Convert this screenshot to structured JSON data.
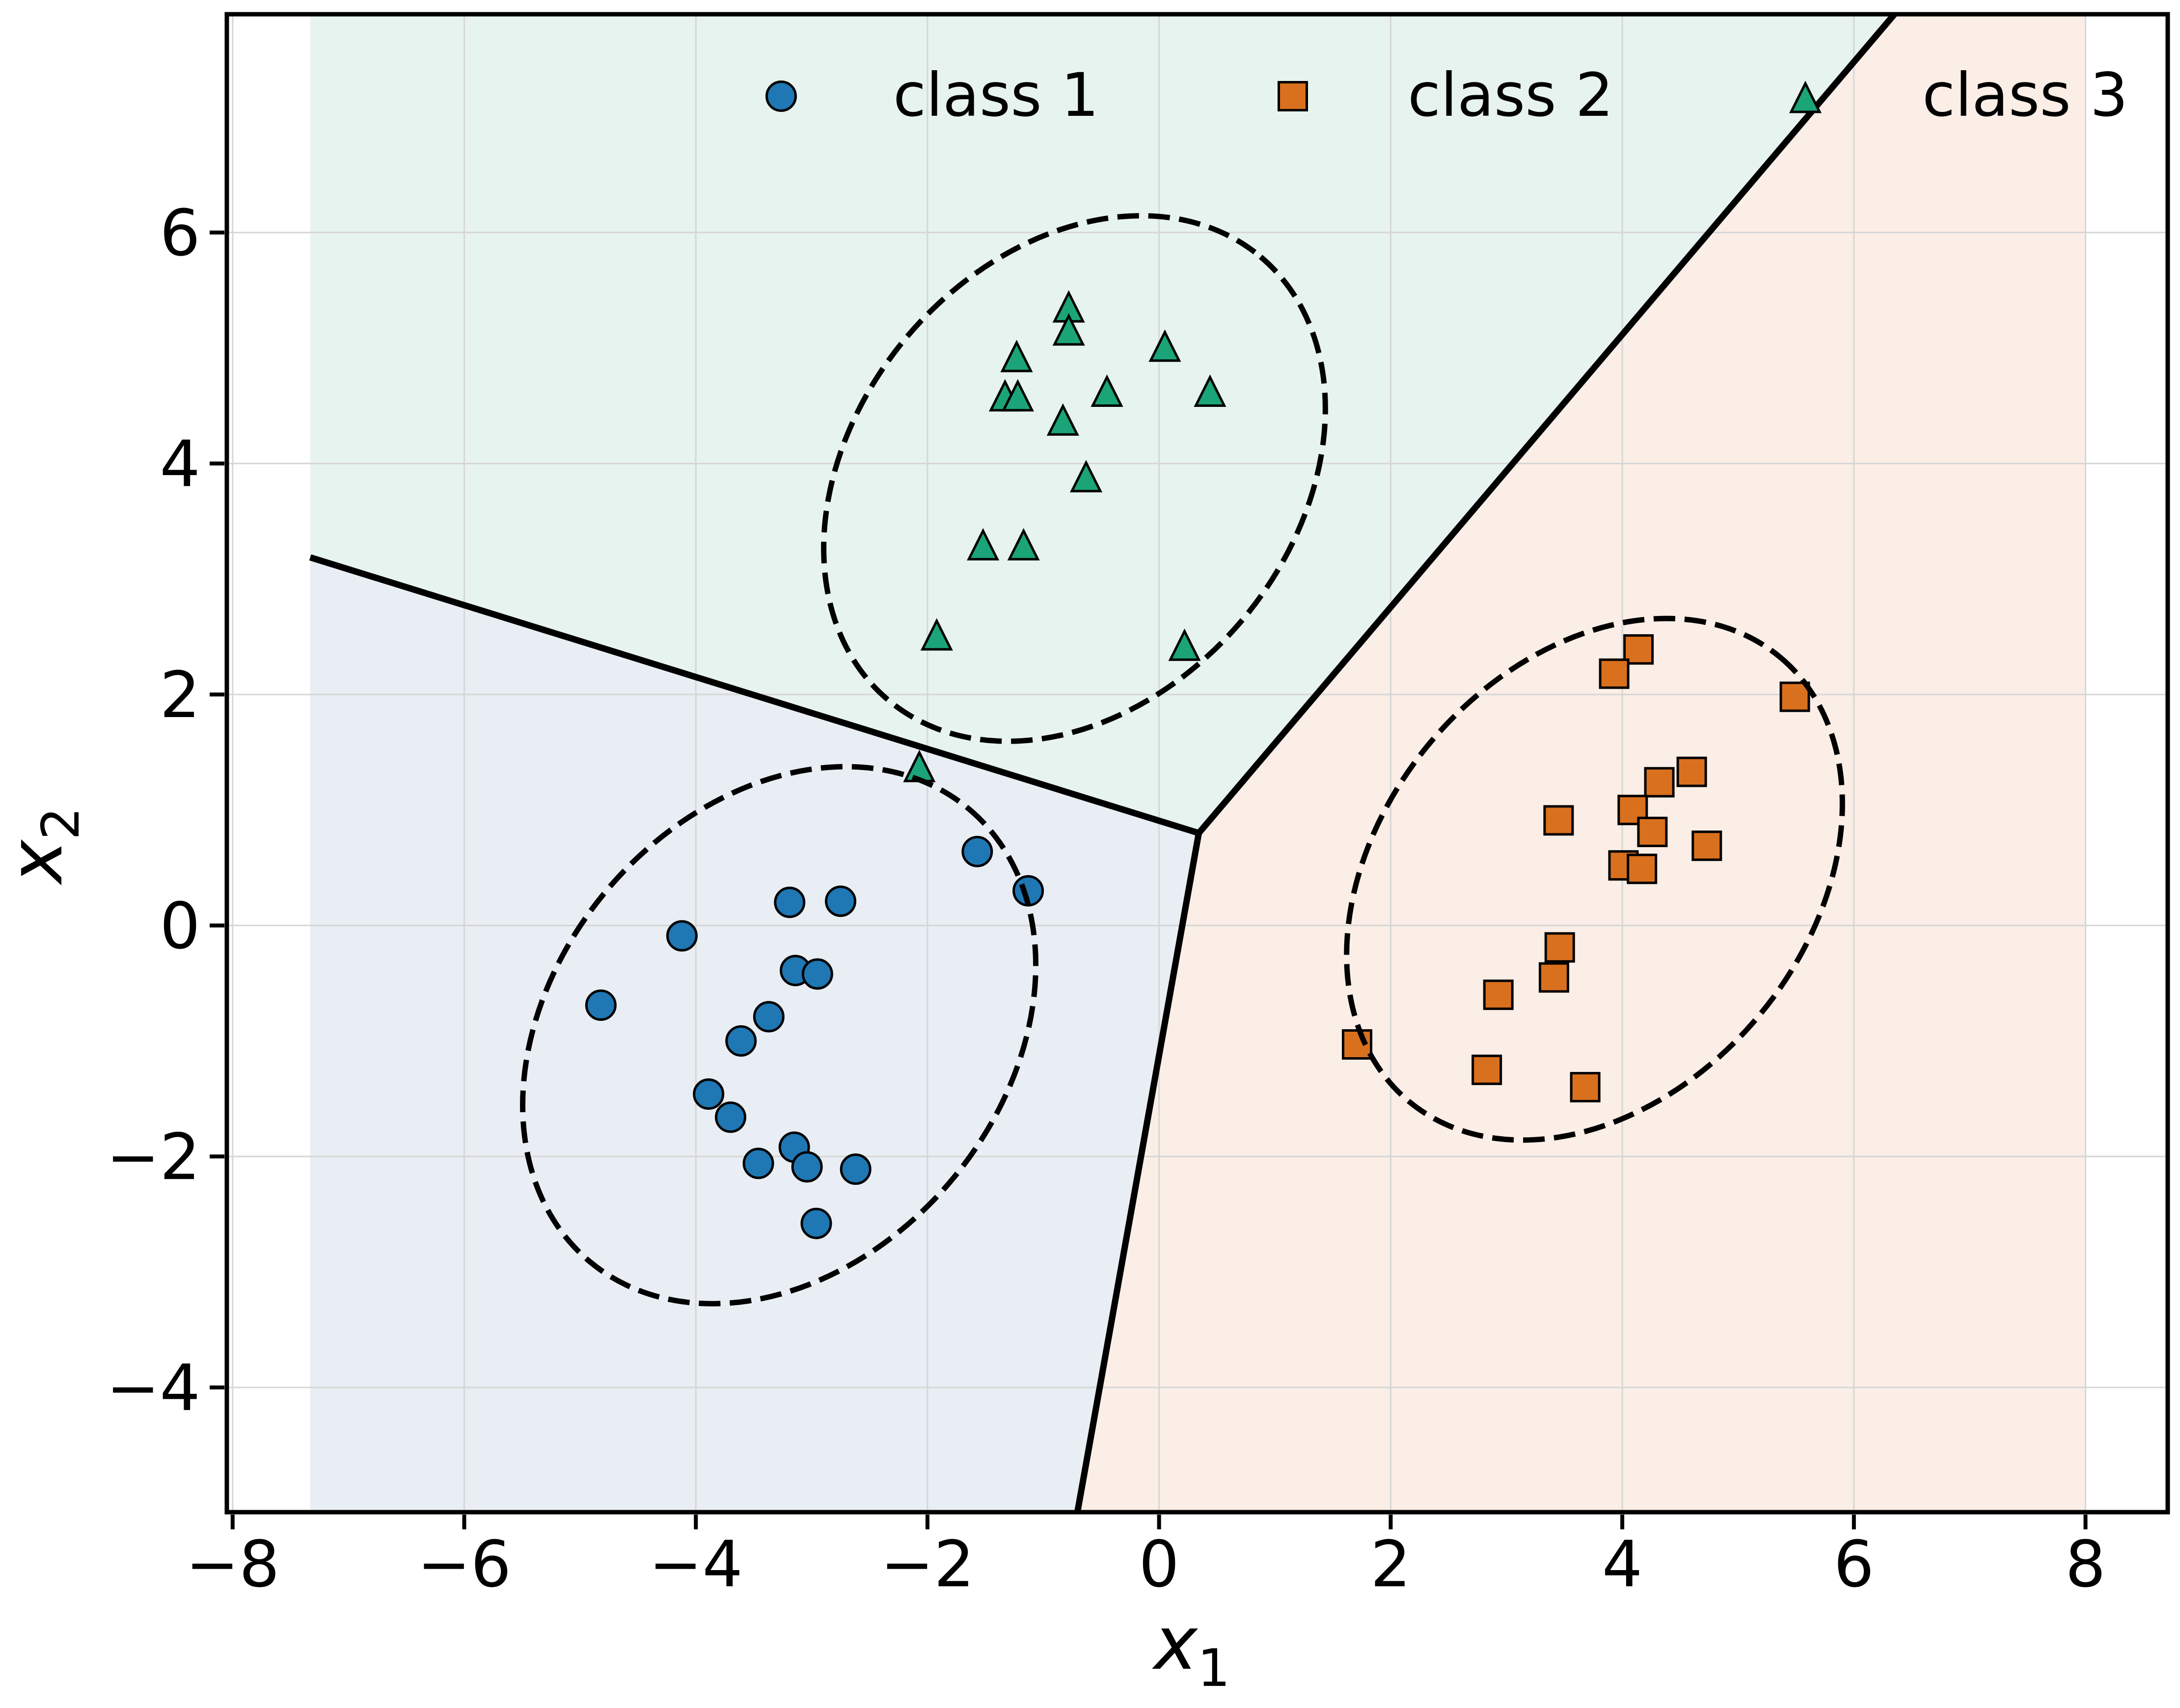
{
  "chart_data": {
    "type": "scatter",
    "title": "",
    "xlabel": "x",
    "xlabel_sub": "1",
    "ylabel": "x",
    "ylabel_sub": "2",
    "xlim": [
      -8.05,
      8.71
    ],
    "ylim": [
      -5.08,
      7.89
    ],
    "xticks": [
      -8,
      -6,
      -4,
      -2,
      0,
      2,
      4,
      6,
      8
    ],
    "yticks": [
      -4,
      -2,
      0,
      2,
      4,
      6
    ],
    "grid": true,
    "legend": {
      "position": "top",
      "frame": false,
      "labels": [
        "class 1",
        "class 2",
        "class 3"
      ]
    },
    "series": [
      {
        "name": "class 1",
        "marker": "circle",
        "color": "#1f77b4",
        "points": [
          [
            -4.82,
            -0.69
          ],
          [
            -4.12,
            -0.09
          ],
          [
            -3.19,
            0.2
          ],
          [
            -2.75,
            0.21
          ],
          [
            -1.57,
            0.64
          ],
          [
            -1.13,
            0.3
          ],
          [
            -3.14,
            -0.39
          ],
          [
            -2.95,
            -0.42
          ],
          [
            -3.37,
            -0.79
          ],
          [
            -3.61,
            -1.0
          ],
          [
            -3.89,
            -1.46
          ],
          [
            -3.7,
            -1.66
          ],
          [
            -3.46,
            -2.06
          ],
          [
            -3.15,
            -1.92
          ],
          [
            -3.04,
            -2.09
          ],
          [
            -2.62,
            -2.11
          ],
          [
            -2.96,
            -2.58
          ]
        ]
      },
      {
        "name": "class 2",
        "marker": "square",
        "color": "#d9701e",
        "points": [
          [
            4.14,
            2.39
          ],
          [
            3.93,
            2.18
          ],
          [
            5.49,
            1.98
          ],
          [
            4.6,
            1.33
          ],
          [
            4.32,
            1.24
          ],
          [
            4.09,
            1.0
          ],
          [
            3.45,
            0.91
          ],
          [
            4.26,
            0.81
          ],
          [
            4.73,
            0.69
          ],
          [
            4.01,
            0.52
          ],
          [
            4.17,
            0.49
          ],
          [
            3.46,
            -0.19
          ],
          [
            3.41,
            -0.45
          ],
          [
            2.93,
            -0.6
          ],
          [
            1.71,
            -1.03
          ],
          [
            2.83,
            -1.25
          ],
          [
            3.68,
            -1.4
          ]
        ]
      },
      {
        "name": "class 3",
        "marker": "triangle",
        "color": "#1ba478",
        "points": [
          [
            -0.78,
            5.35
          ],
          [
            -0.78,
            5.15
          ],
          [
            -1.23,
            4.92
          ],
          [
            -1.33,
            4.58
          ],
          [
            -1.22,
            4.58
          ],
          [
            -0.83,
            4.37
          ],
          [
            -0.45,
            4.62
          ],
          [
            0.05,
            5.01
          ],
          [
            0.44,
            4.62
          ],
          [
            -0.63,
            3.88
          ],
          [
            -1.52,
            3.29
          ],
          [
            -1.17,
            3.29
          ],
          [
            -1.92,
            2.51
          ],
          [
            0.22,
            2.42
          ],
          [
            -2.07,
            1.37
          ]
        ]
      }
    ],
    "decision_boundaries": {
      "junction": [
        0.343,
        0.8
      ],
      "ends": {
        "left": [
          -7.33,
          3.187
        ],
        "top": [
          6.35,
          7.893
        ],
        "bottom": [
          -0.705,
          -5.08
        ]
      },
      "mesh_x_domain": [
        -7.33,
        8.0
      ],
      "line_color": "#000000"
    },
    "region_fills": {
      "class1": "#e8eef3",
      "class2": "#faeee6",
      "class3": "#e7f3ee"
    },
    "cluster_ellipses": [
      {
        "class": "class 1",
        "center": [
          -3.28,
          -0.95
        ],
        "a": 2.55,
        "b": 1.95,
        "angle_deg": 50
      },
      {
        "class": "class 3",
        "center": [
          -0.73,
          3.87
        ],
        "a": 2.5,
        "b": 1.9,
        "angle_deg": 50
      },
      {
        "class": "class 2",
        "center": [
          3.76,
          0.4
        ],
        "a": 2.5,
        "b": 1.85,
        "angle_deg": 50
      }
    ],
    "grid_color": "#d6d6d6",
    "axis_color": "#000000"
  }
}
